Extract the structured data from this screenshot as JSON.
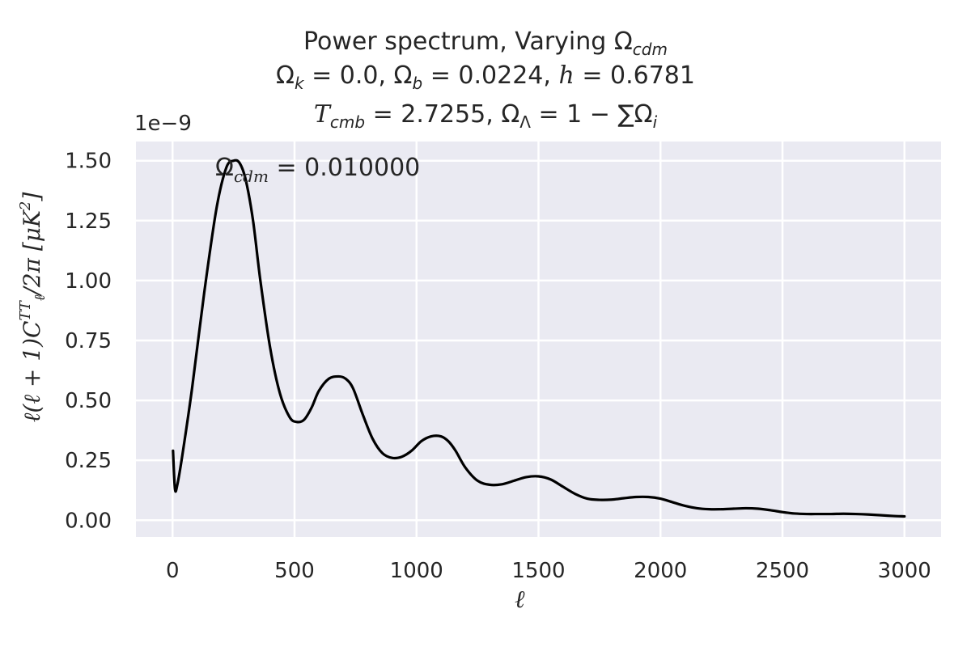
{
  "title": {
    "line1_prefix": "Power spectrum, Varying Ω",
    "line1_sub": "cdm",
    "line2_ok": "Ω",
    "line2_ok_sub": "k",
    "line2_ok_val": " = 0.0, ",
    "line2_ob": "Ω",
    "line2_ob_sub": "b",
    "line2_ob_val": " = 0.0224, ",
    "line2_h": "h",
    "line2_h_val": " = 0.6781",
    "line3_t": "T",
    "line3_t_sub": "cmb",
    "line3_t_val": " = 2.7255, ",
    "line3_ol": "Ω",
    "line3_ol_sub": "Λ",
    "line3_ol_val": " = 1 − ∑Ω",
    "line3_i_sub": "i"
  },
  "multiplier": "1e−9",
  "ylabel": {
    "text1": "ℓ(ℓ + 1)C",
    "sup": "TT",
    "sub": "ℓ",
    "text2": "/2π    [μK",
    "sup2": "2",
    "text3": "]"
  },
  "xlabel": "ℓ",
  "annotation": {
    "sym": "Ω",
    "sub": "cdm",
    "value": " = 0.010000"
  },
  "colors": {
    "plot_bg": "#eaeaf2",
    "grid": "#ffffff",
    "line": "#000000",
    "text": "#262626"
  },
  "chart_data": {
    "type": "line",
    "xlabel": "ℓ",
    "ylabel": "ℓ(ℓ+1)C_ℓ^TT/2π [μK²]",
    "y_multiplier": "1e−9",
    "xlim": [
      -150,
      3150
    ],
    "ylim": [
      -0.07,
      1.58
    ],
    "xticks": [
      0,
      500,
      1000,
      1500,
      2000,
      2500,
      3000
    ],
    "xtick_labels": [
      "0",
      "500",
      "1000",
      "1500",
      "2000",
      "2500",
      "3000"
    ],
    "yticks": [
      0.0,
      0.25,
      0.5,
      0.75,
      1.0,
      1.25,
      1.5
    ],
    "ytick_labels": [
      "0.00",
      "0.25",
      "0.50",
      "0.75",
      "1.00",
      "1.25",
      "1.50"
    ],
    "grid": true,
    "series": [
      {
        "color": "#000000",
        "x": [
          2,
          10,
          20,
          40,
          80,
          130,
          180,
          220,
          250,
          275,
          300,
          330,
          360,
          400,
          440,
          480,
          510,
          540,
          570,
          600,
          640,
          680,
          710,
          740,
          780,
          820,
          860,
          900,
          940,
          980,
          1020,
          1060,
          1100,
          1130,
          1160,
          1200,
          1250,
          1300,
          1350,
          1400,
          1450,
          1500,
          1550,
          1600,
          1650,
          1700,
          1750,
          1800,
          1850,
          1900,
          1950,
          2000,
          2050,
          2100,
          2150,
          2200,
          2250,
          2300,
          2350,
          2400,
          2450,
          2500,
          2550,
          2600,
          2650,
          2700,
          2750,
          2800,
          2850,
          2900,
          2950,
          3000
        ],
        "y": [
          0.29,
          0.13,
          0.15,
          0.27,
          0.55,
          0.95,
          1.3,
          1.47,
          1.5,
          1.49,
          1.42,
          1.25,
          1.0,
          0.72,
          0.53,
          0.43,
          0.41,
          0.42,
          0.47,
          0.54,
          0.59,
          0.6,
          0.59,
          0.55,
          0.44,
          0.34,
          0.28,
          0.26,
          0.265,
          0.29,
          0.33,
          0.35,
          0.35,
          0.33,
          0.29,
          0.22,
          0.165,
          0.148,
          0.15,
          0.165,
          0.18,
          0.183,
          0.17,
          0.14,
          0.11,
          0.09,
          0.085,
          0.086,
          0.092,
          0.097,
          0.097,
          0.09,
          0.075,
          0.06,
          0.05,
          0.046,
          0.046,
          0.048,
          0.05,
          0.048,
          0.042,
          0.034,
          0.028,
          0.026,
          0.026,
          0.026,
          0.027,
          0.026,
          0.024,
          0.021,
          0.018,
          0.016
        ]
      }
    ]
  }
}
